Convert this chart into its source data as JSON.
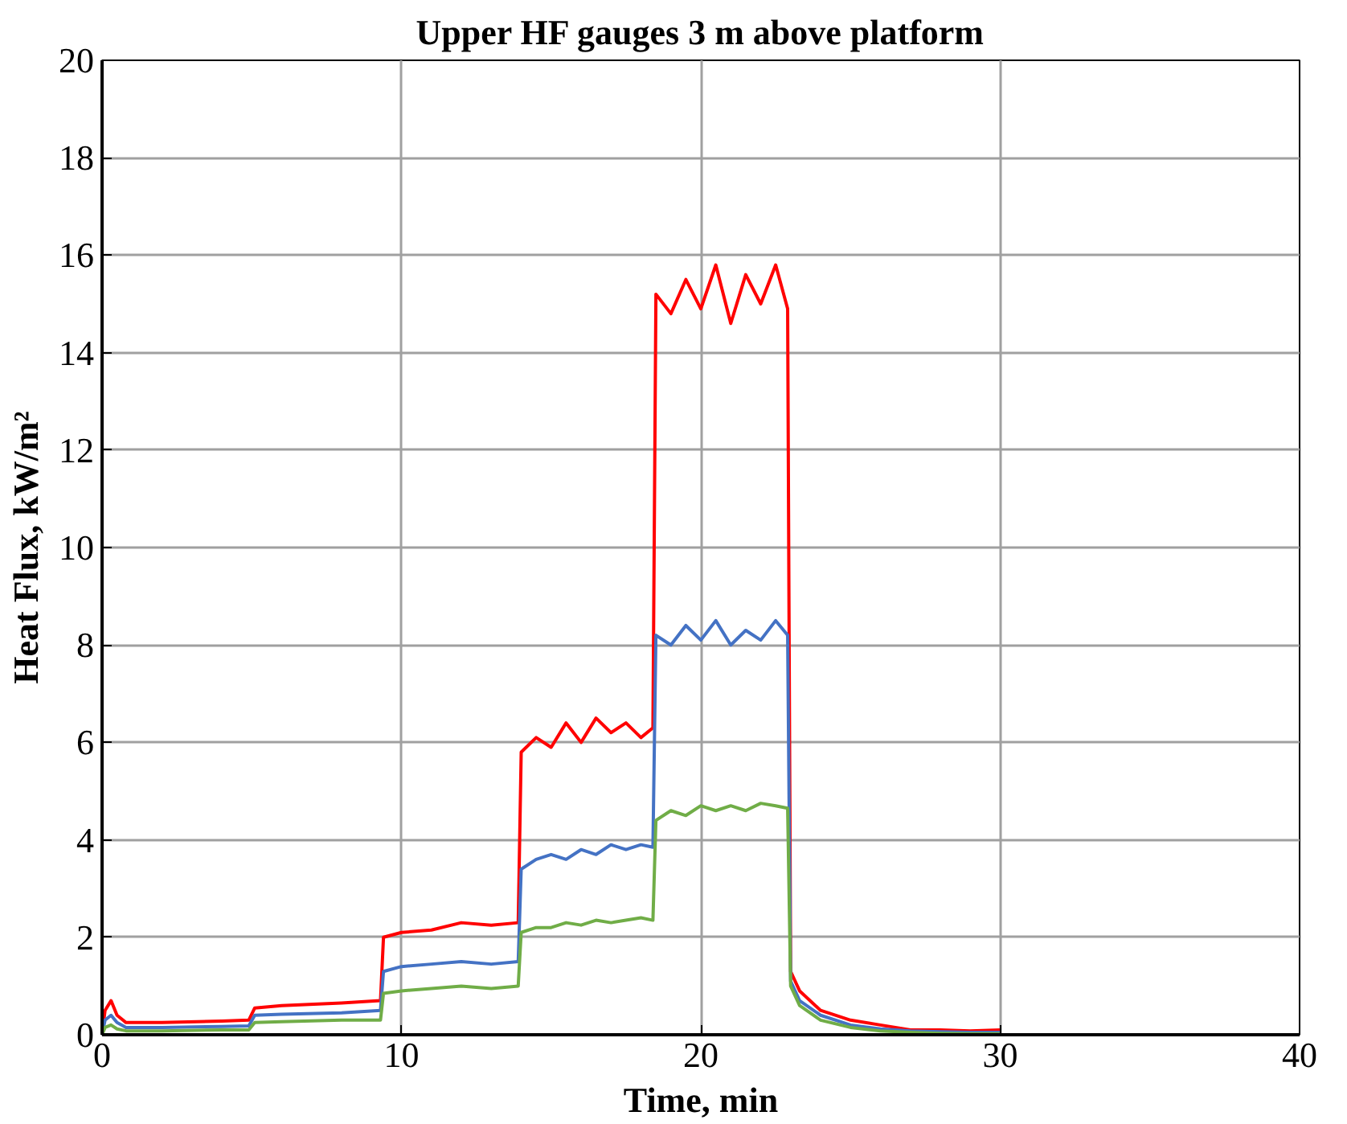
{
  "chart_data": {
    "type": "line",
    "title": "Upper HF gauges 3 m above platform",
    "xlabel": "Time, min",
    "ylabel": "Heat Flux, kW/m²",
    "xlim": [
      0,
      40
    ],
    "ylim": [
      0,
      20
    ],
    "xticks": [
      0,
      10,
      20,
      30,
      40
    ],
    "yticks": [
      0,
      2,
      4,
      6,
      8,
      10,
      12,
      14,
      16,
      18,
      20
    ],
    "grid": true,
    "marker": "none",
    "line_style": "solid",
    "series": [
      {
        "color": "#ff0000",
        "x": [
          0,
          0.1,
          0.3,
          0.5,
          0.8,
          2,
          4,
          4.9,
          5.1,
          6,
          8,
          9.3,
          9.4,
          10,
          11,
          12,
          13,
          13.9,
          14,
          14.5,
          15,
          15.5,
          16,
          16.5,
          17,
          17.5,
          18,
          18.4,
          18.5,
          19,
          19.5,
          20,
          20.5,
          21,
          21.5,
          22,
          22.5,
          22.9,
          23,
          23.3,
          24,
          25,
          26,
          27,
          28,
          29,
          30
        ],
        "values": [
          0,
          0.5,
          0.7,
          0.4,
          0.25,
          0.25,
          0.28,
          0.3,
          0.55,
          0.6,
          0.65,
          0.7,
          2.0,
          2.1,
          2.15,
          2.3,
          2.25,
          2.3,
          5.8,
          6.1,
          5.9,
          6.4,
          6.0,
          6.5,
          6.2,
          6.4,
          6.1,
          6.3,
          15.2,
          14.8,
          15.5,
          14.9,
          15.8,
          14.6,
          15.6,
          15.0,
          15.8,
          14.9,
          1.3,
          0.9,
          0.5,
          0.3,
          0.2,
          0.1,
          0.1,
          0.08,
          0.1
        ]
      },
      {
        "color": "#4472c4",
        "x": [
          0,
          0.1,
          0.3,
          0.5,
          0.8,
          2,
          4,
          4.9,
          5.1,
          6,
          8,
          9.3,
          9.4,
          10,
          11,
          12,
          13,
          13.9,
          14,
          14.5,
          15,
          15.5,
          16,
          16.5,
          17,
          17.5,
          18,
          18.4,
          18.5,
          19,
          19.5,
          20,
          20.5,
          21,
          21.5,
          22,
          22.5,
          22.9,
          23,
          23.3,
          24,
          25,
          26,
          27,
          28,
          29,
          30
        ],
        "values": [
          0,
          0.3,
          0.4,
          0.25,
          0.15,
          0.15,
          0.17,
          0.18,
          0.4,
          0.42,
          0.45,
          0.5,
          1.3,
          1.4,
          1.45,
          1.5,
          1.45,
          1.5,
          3.4,
          3.6,
          3.7,
          3.6,
          3.8,
          3.7,
          3.9,
          3.8,
          3.9,
          3.85,
          8.2,
          8.0,
          8.4,
          8.1,
          8.5,
          8.0,
          8.3,
          8.1,
          8.5,
          8.2,
          1.1,
          0.7,
          0.4,
          0.2,
          0.12,
          0.08,
          0.06,
          0.05,
          0.05
        ]
      },
      {
        "color": "#70ad47",
        "x": [
          0,
          0.1,
          0.3,
          0.5,
          0.8,
          2,
          4,
          4.9,
          5.1,
          6,
          8,
          9.3,
          9.4,
          10,
          11,
          12,
          13,
          13.9,
          14,
          14.5,
          15,
          15.5,
          16,
          16.5,
          17,
          17.5,
          18,
          18.4,
          18.5,
          19,
          19.5,
          20,
          20.5,
          21,
          21.5,
          22,
          22.5,
          22.9,
          23,
          23.3,
          24,
          25,
          26,
          27,
          28,
          29,
          30
        ],
        "values": [
          0,
          0.15,
          0.2,
          0.12,
          0.08,
          0.08,
          0.1,
          0.1,
          0.25,
          0.27,
          0.3,
          0.3,
          0.85,
          0.9,
          0.95,
          1.0,
          0.95,
          1.0,
          2.1,
          2.2,
          2.2,
          2.3,
          2.25,
          2.35,
          2.3,
          2.35,
          2.4,
          2.35,
          4.4,
          4.6,
          4.5,
          4.7,
          4.6,
          4.7,
          4.6,
          4.75,
          4.7,
          4.65,
          1.0,
          0.6,
          0.3,
          0.15,
          0.08,
          0.05,
          0.03,
          0.02,
          0.02
        ]
      }
    ]
  }
}
